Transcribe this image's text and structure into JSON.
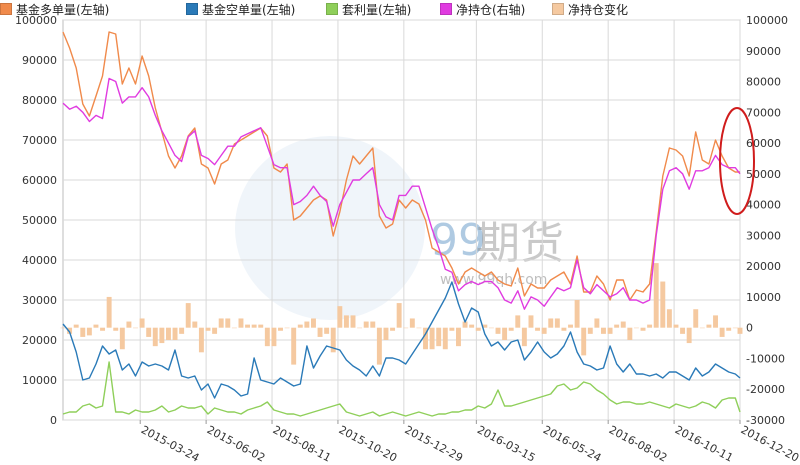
{
  "chart_data": {
    "type": "line",
    "title": "",
    "x": [
      "2015-01-01",
      "2015-01-08",
      "2015-01-15",
      "2015-01-22",
      "2015-01-29",
      "2015-02-05",
      "2015-02-12",
      "2015-02-19",
      "2015-02-26",
      "2015-03-05",
      "2015-03-12",
      "2015-03-19",
      "2015-03-26",
      "2015-04-02",
      "2015-04-09",
      "2015-04-16",
      "2015-04-23",
      "2015-04-30",
      "2015-05-07",
      "2015-05-14",
      "2015-05-21",
      "2015-05-28",
      "2015-06-04",
      "2015-06-11",
      "2015-06-18",
      "2015-06-25",
      "2015-07-02",
      "2015-07-09",
      "2015-07-16",
      "2015-07-23",
      "2015-07-30",
      "2015-08-06",
      "2015-08-13",
      "2015-08-20",
      "2015-08-27",
      "2015-09-03",
      "2015-09-10",
      "2015-09-17",
      "2015-09-24",
      "2015-10-01",
      "2015-10-08",
      "2015-10-15",
      "2015-10-22",
      "2015-10-29",
      "2015-11-05",
      "2015-11-12",
      "2015-11-19",
      "2015-11-26",
      "2015-12-03",
      "2015-12-10",
      "2015-12-17",
      "2015-12-24",
      "2015-12-31",
      "2016-01-07",
      "2016-01-14",
      "2016-01-21",
      "2016-01-28",
      "2016-02-04",
      "2016-02-11",
      "2016-02-18",
      "2016-02-25",
      "2016-03-03",
      "2016-03-10",
      "2016-03-17",
      "2016-03-24",
      "2016-03-31",
      "2016-04-07",
      "2016-04-14",
      "2016-04-21",
      "2016-04-28",
      "2016-05-05",
      "2016-05-12",
      "2016-05-19",
      "2016-05-26",
      "2016-06-02",
      "2016-06-09",
      "2016-06-16",
      "2016-06-23",
      "2016-06-30",
      "2016-07-07",
      "2016-07-14",
      "2016-07-21",
      "2016-07-28",
      "2016-08-04",
      "2016-08-11",
      "2016-08-18",
      "2016-08-25",
      "2016-09-01",
      "2016-09-08",
      "2016-09-15",
      "2016-09-22",
      "2016-09-29",
      "2016-10-06",
      "2016-10-13",
      "2016-10-20",
      "2016-10-27",
      "2016-11-03",
      "2016-11-10",
      "2016-11-17",
      "2016-11-24",
      "2016-12-01",
      "2016-12-08",
      "2016-12-15",
      "2016-12-20"
    ],
    "x_ticks": [
      "2015-03-24",
      "2015-06-02",
      "2015-08-11",
      "2015-10-20",
      "2015-12-29",
      "2016-03-15",
      "2016-05-24",
      "2016-08-02",
      "2016-10-11",
      "2016-12-20"
    ],
    "y_left": {
      "ticks": [
        "0",
        "10000",
        "20000",
        "30000",
        "40000",
        "50000",
        "60000",
        "70000",
        "80000",
        "90000",
        "100000"
      ],
      "range": [
        0,
        100000
      ]
    },
    "y_right": {
      "ticks": [
        "-30000",
        "-20000",
        "-10000",
        "0",
        "10000",
        "20000",
        "30000",
        "40000",
        "50000",
        "60000",
        "70000",
        "80000",
        "90000",
        "100000"
      ],
      "range": [
        -30000,
        100000
      ]
    },
    "grid": true,
    "legend_position": "top",
    "series": [
      {
        "name": "基金多单量(左轴)",
        "type": "line",
        "axis": "left",
        "color": "#f08a4b",
        "values": [
          97000,
          93000,
          88000,
          79000,
          76000,
          81000,
          86000,
          97000,
          96500,
          84000,
          88000,
          84000,
          91000,
          86000,
          78000,
          72000,
          66000,
          63000,
          66000,
          71000,
          73000,
          64000,
          63000,
          59000,
          64000,
          65000,
          69000,
          70000,
          71000,
          72000,
          73000,
          71000,
          63000,
          62000,
          64000,
          50000,
          51000,
          53000,
          55000,
          56000,
          55000,
          46000,
          52000,
          60000,
          66000,
          64000,
          66000,
          68000,
          51000,
          48000,
          49000,
          55000,
          53000,
          55000,
          54000,
          50000,
          43000,
          42000,
          41000,
          38000,
          34000,
          37000,
          38000,
          37000,
          36000,
          37000,
          35000,
          34000,
          33500,
          38000,
          31000,
          34000,
          33000,
          33000,
          35000,
          36000,
          37000,
          34000,
          41000,
          32000,
          32000,
          36000,
          34000,
          30000,
          35000,
          35000,
          30000,
          32500,
          32000,
          34000,
          47000,
          61000,
          68000,
          67500,
          66000,
          61000,
          72000,
          65000,
          64000,
          70000,
          66000,
          63000,
          62000,
          62000
        ]
      },
      {
        "name": "基金空单量(左轴)",
        "type": "line",
        "axis": "left",
        "color": "#2a7ab8",
        "values": [
          24000,
          22000,
          17000,
          10000,
          10500,
          14000,
          18500,
          16500,
          17500,
          12500,
          14000,
          11000,
          14500,
          13500,
          14000,
          13500,
          12500,
          17500,
          11000,
          10500,
          11000,
          7500,
          9000,
          5500,
          9000,
          8500,
          7500,
          6000,
          6500,
          15500,
          10000,
          9500,
          9000,
          10500,
          9500,
          8500,
          9000,
          18500,
          13000,
          16000,
          18500,
          18000,
          17500,
          15000,
          13500,
          12500,
          11000,
          13500,
          11000,
          15500,
          15500,
          15000,
          14000,
          16500,
          19000,
          21500,
          24500,
          27500,
          30500,
          34500,
          29000,
          24500,
          28000,
          27000,
          21500,
          18500,
          19500,
          17500,
          19500,
          20000,
          15000,
          17000,
          19500,
          17000,
          15500,
          16500,
          18500,
          22000,
          17000,
          14000,
          13500,
          12500,
          13000,
          18500,
          14000,
          12000,
          14000,
          11500,
          11500,
          11000,
          11500,
          10500,
          12000,
          12000,
          11000,
          10000,
          13000,
          11000,
          12000,
          14000,
          13000,
          12000,
          11500,
          10500
        ]
      },
      {
        "name": "套利量(左轴)",
        "type": "line",
        "axis": "left",
        "color": "#8fcf5a",
        "values": [
          1500,
          2000,
          2000,
          3500,
          4000,
          3000,
          3500,
          14500,
          2000,
          2000,
          1500,
          2500,
          2000,
          2000,
          2500,
          3500,
          2000,
          2500,
          3500,
          3000,
          3000,
          3500,
          1500,
          3000,
          2500,
          2000,
          2000,
          1500,
          2500,
          3000,
          3500,
          4500,
          2500,
          2000,
          1500,
          1500,
          1000,
          1500,
          2000,
          2500,
          3000,
          3500,
          4000,
          2000,
          1500,
          1000,
          1500,
          2000,
          1000,
          1500,
          2000,
          1500,
          1000,
          1500,
          2000,
          1500,
          1000,
          1500,
          1500,
          2000,
          2000,
          2500,
          2500,
          3500,
          3000,
          4000,
          7500,
          3500,
          3500,
          4000,
          4500,
          5000,
          5500,
          6000,
          6500,
          8500,
          9000,
          7500,
          8000,
          9500,
          9000,
          7500,
          6500,
          5000,
          4000,
          4500,
          4500,
          4000,
          4000,
          4500,
          4000,
          3500,
          3000,
          4000,
          3500,
          3000,
          3500,
          4500,
          4000,
          3000,
          5000,
          5500,
          5500,
          2000
        ]
      },
      {
        "name": "净持仓(右轴)",
        "type": "line",
        "axis": "right",
        "color": "#e03be0",
        "values": [
          73000,
          71000,
          72000,
          70000,
          67000,
          69000,
          68000,
          81000,
          80000,
          73000,
          75000,
          75000,
          78000,
          75000,
          69000,
          64000,
          60000,
          56000,
          54000,
          62000,
          64000,
          56000,
          55000,
          53000,
          56000,
          59000,
          59000,
          62000,
          63000,
          64000,
          65000,
          59000,
          53000,
          52000,
          52000,
          40000,
          41000,
          43000,
          46000,
          43000,
          41000,
          33000,
          40000,
          44000,
          48000,
          48000,
          50000,
          52000,
          40000,
          36000,
          35000,
          43000,
          43000,
          46000,
          46000,
          39000,
          32000,
          26000,
          19000,
          18000,
          12000,
          14000,
          15000,
          14000,
          15000,
          15000,
          13000,
          9000,
          8000,
          12000,
          6000,
          10000,
          9000,
          7000,
          10000,
          13000,
          12000,
          13000,
          22000,
          13000,
          11000,
          14000,
          12000,
          10000,
          11000,
          13000,
          9000,
          9000,
          8000,
          9000,
          30000,
          45000,
          51000,
          52000,
          50000,
          45000,
          51000,
          51000,
          52000,
          56000,
          53000,
          52000,
          52000,
          50000
        ]
      },
      {
        "name": "净持仓变化",
        "type": "bar",
        "axis": "right",
        "color": "#f5c9a0",
        "values": [
          0,
          -2000,
          1000,
          -3000,
          -2500,
          1000,
          -1000,
          10000,
          -1000,
          -7000,
          2000,
          0,
          3000,
          -3000,
          -6000,
          -5000,
          -4000,
          -4000,
          -2000,
          8000,
          2000,
          -8000,
          -1000,
          -2000,
          3000,
          3000,
          0,
          3000,
          1000,
          1000,
          1000,
          -6000,
          -6000,
          -1000,
          0,
          -12000,
          1000,
          2000,
          3000,
          -3000,
          -2000,
          -8000,
          7000,
          4000,
          4000,
          0,
          2000,
          2000,
          -12000,
          -4000,
          -1000,
          8000,
          0,
          3000,
          0,
          -7000,
          -7000,
          -6000,
          -7000,
          -1000,
          -6000,
          2000,
          1000,
          -1000,
          1000,
          0,
          -2000,
          -4000,
          -1000,
          4000,
          -6000,
          4000,
          -1000,
          -2000,
          3000,
          3000,
          -1000,
          1000,
          9000,
          -9000,
          -2000,
          3000,
          -2000,
          -2000,
          1000,
          2000,
          -4000,
          0,
          -1000,
          1000,
          21000,
          15000,
          6000,
          1000,
          -2000,
          -5000,
          6000,
          0,
          1000,
          4000,
          -3000,
          -1000,
          0,
          -2000
        ]
      }
    ]
  },
  "watermark": {
    "brand": "期货",
    "url": "www.99qh.com",
    "number": "99"
  }
}
